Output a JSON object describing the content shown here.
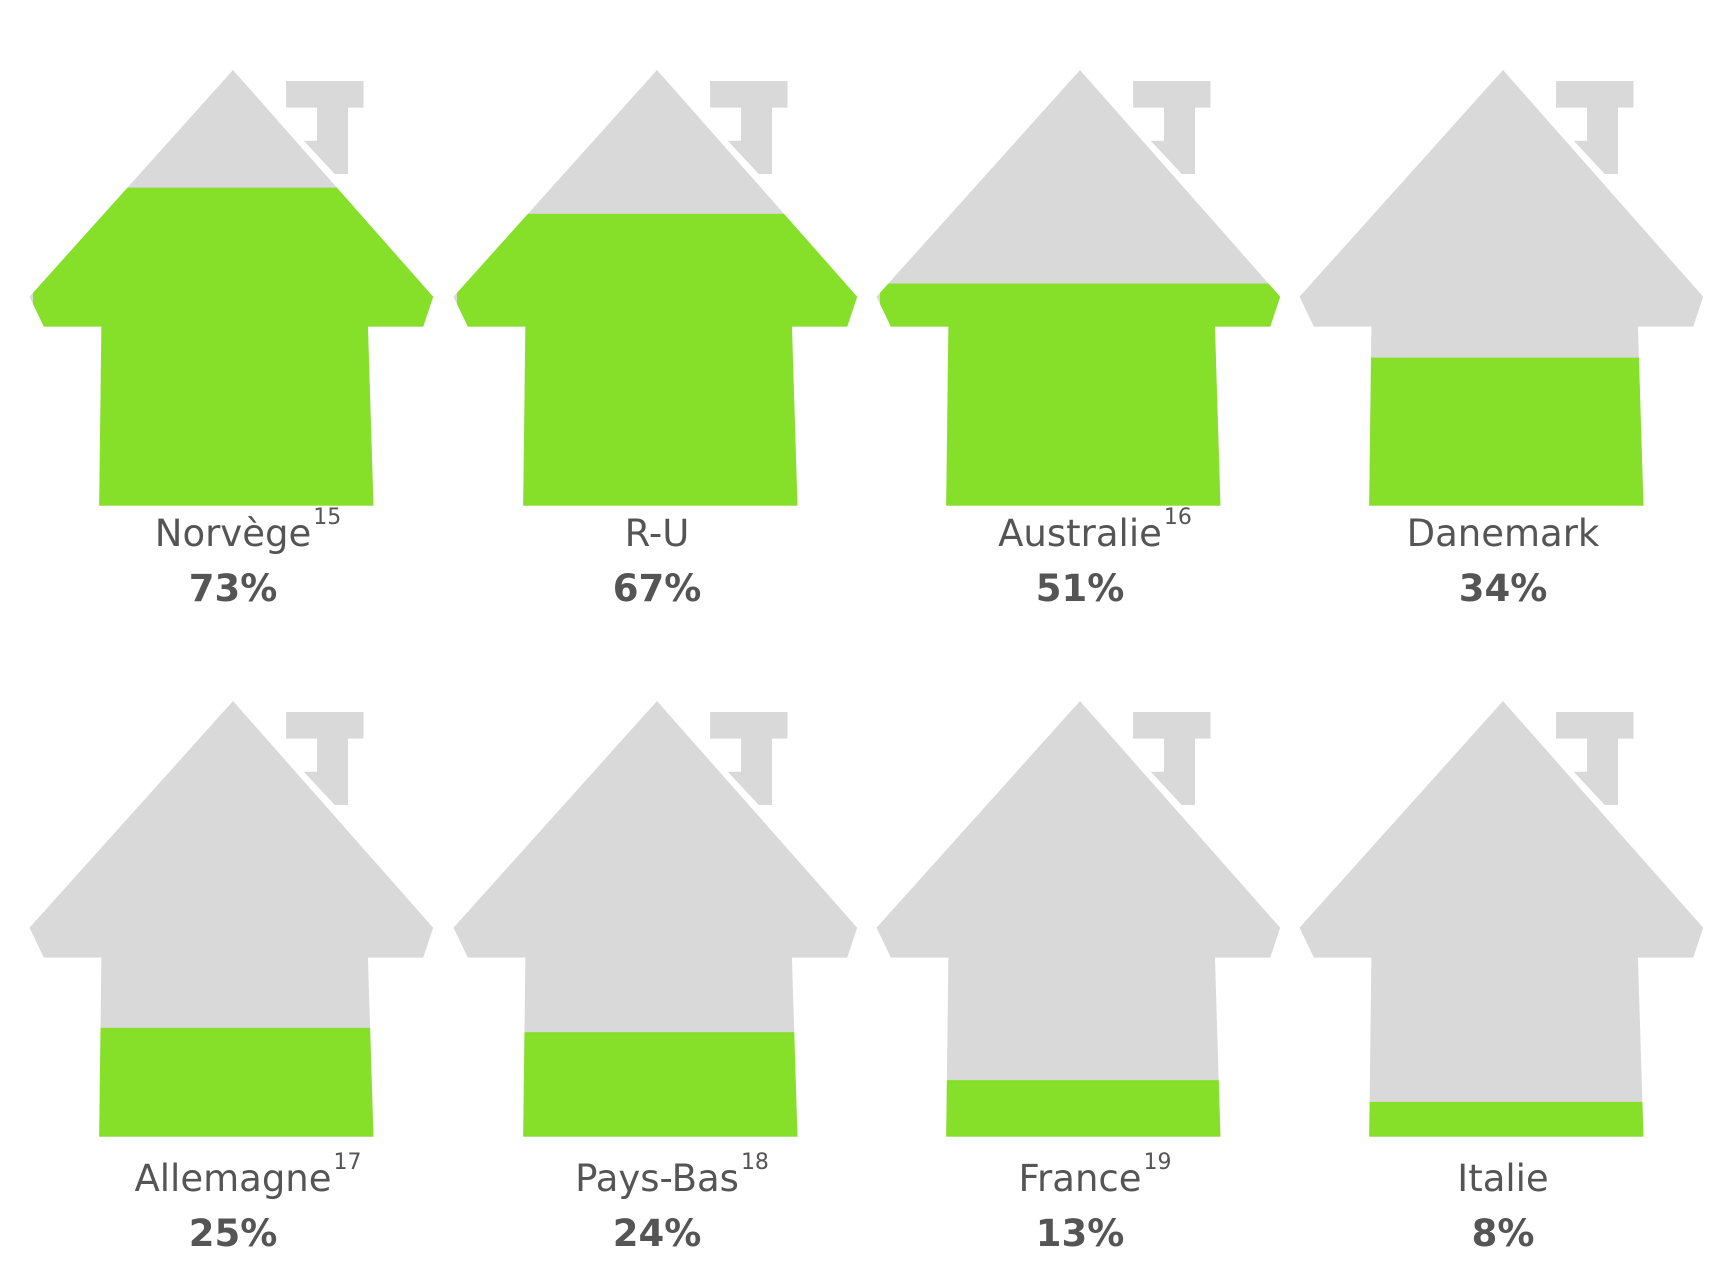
{
  "chart_data": {
    "type": "pictogram",
    "categories": [
      "Norvège",
      "R-U",
      "Australie",
      "Danemark",
      "Allemagne",
      "Pays-Bas",
      "France",
      "Italie"
    ],
    "footnotes": [
      "15",
      null,
      "16",
      null,
      "17",
      "18",
      "19",
      null
    ],
    "values": [
      73,
      67,
      51,
      34,
      25,
      24,
      13,
      8
    ],
    "value_labels": [
      "73%",
      "67%",
      "51%",
      "34%",
      "25%",
      "24%",
      "13%",
      "8%"
    ],
    "ylim": [
      0,
      100
    ],
    "color": "#86e02a",
    "empty_color": "#d9d9d9"
  }
}
